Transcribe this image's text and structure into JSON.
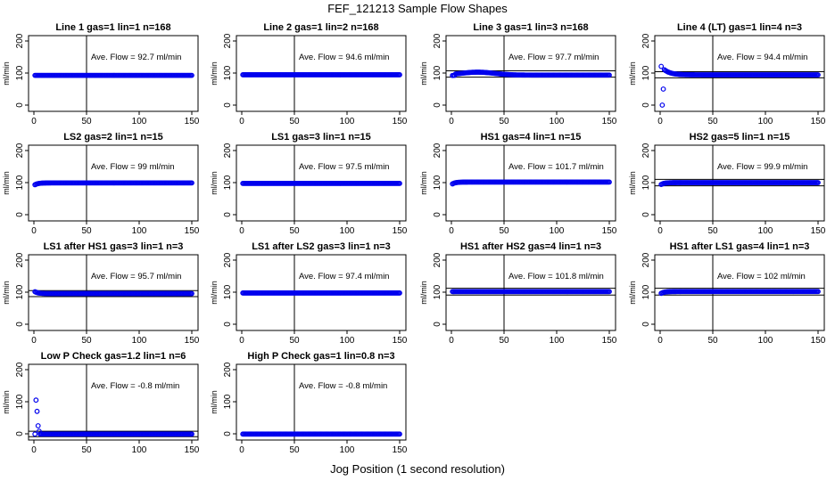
{
  "title": "FEF_121213  Sample Flow Shapes",
  "xlabel": "Jog Position (1 second resolution)",
  "ylabel": "ml/min",
  "colors": {
    "points": "#0000ee",
    "axes": "#000000"
  },
  "chart_data": [
    {
      "type": "scatter",
      "title": "Line 1 gas=1 lin=1 n=168",
      "annotation": "Ave. Flow =  92.7  ml/min",
      "xlim": [
        0,
        150
      ],
      "ylim": [
        0,
        200
      ],
      "xticks": [
        0,
        50,
        100,
        150
      ],
      "yticks": [
        0,
        100,
        200
      ],
      "vline": 50,
      "hlines": [],
      "shape": "flat",
      "level": 92.7,
      "xlabel": "",
      "ylabel": "ml/min",
      "series": []
    },
    {
      "type": "scatter",
      "title": "Line 2 gas=1 lin=2 n=168",
      "annotation": "Ave. Flow =  94.6  ml/min",
      "xlim": [
        0,
        150
      ],
      "ylim": [
        0,
        200
      ],
      "xticks": [
        0,
        50,
        100,
        150
      ],
      "yticks": [
        0,
        100,
        200
      ],
      "vline": 50,
      "hlines": [],
      "shape": "flat",
      "level": 94.6,
      "xlabel": "",
      "ylabel": "ml/min",
      "series": []
    },
    {
      "type": "scatter",
      "title": "Line 3 gas=1 lin=3 n=168",
      "annotation": "Ave. Flow =  97.7  ml/min",
      "xlim": [
        0,
        150
      ],
      "ylim": [
        0,
        200
      ],
      "xticks": [
        0,
        50,
        100,
        150
      ],
      "yticks": [
        0,
        100,
        200
      ],
      "vline": 50,
      "hlines": [
        87,
        107
      ],
      "shape": "hump",
      "level": 97.7,
      "xlabel": "",
      "ylabel": "ml/min",
      "series": []
    },
    {
      "type": "scatter",
      "title": "Line 4 (LT) gas=1 lin=4 n=3",
      "annotation": "Ave. Flow =  94.4  ml/min",
      "xlim": [
        0,
        150
      ],
      "ylim": [
        0,
        200
      ],
      "xticks": [
        0,
        50,
        100,
        150
      ],
      "yticks": [
        0,
        100,
        200
      ],
      "vline": 50,
      "hlines": [
        85,
        104
      ],
      "shape": "overshoot",
      "level": 94.4,
      "xlabel": "",
      "ylabel": "ml/min",
      "series": []
    },
    {
      "type": "scatter",
      "title": "LS2 gas=2 lin=1 n=15",
      "annotation": "Ave. Flow =  99  ml/min",
      "xlim": [
        0,
        150
      ],
      "ylim": [
        0,
        200
      ],
      "xticks": [
        0,
        50,
        100,
        150
      ],
      "yticks": [
        0,
        100,
        200
      ],
      "vline": 50,
      "hlines": [],
      "shape": "rise",
      "level": 99,
      "xlabel": "",
      "ylabel": "ml/min",
      "series": []
    },
    {
      "type": "scatter",
      "title": "LS1 gas=3 lin=1 n=15",
      "annotation": "Ave. Flow =  97.5  ml/min",
      "xlim": [
        0,
        150
      ],
      "ylim": [
        0,
        200
      ],
      "xticks": [
        0,
        50,
        100,
        150
      ],
      "yticks": [
        0,
        100,
        200
      ],
      "vline": 50,
      "hlines": [],
      "shape": "flat",
      "level": 97.5,
      "xlabel": "",
      "ylabel": "ml/min",
      "series": []
    },
    {
      "type": "scatter",
      "title": "HS1 gas=4 lin=1 n=15",
      "annotation": "Ave. Flow =  101.7  ml/min",
      "xlim": [
        0,
        150
      ],
      "ylim": [
        0,
        200
      ],
      "xticks": [
        0,
        50,
        100,
        150
      ],
      "yticks": [
        0,
        100,
        200
      ],
      "vline": 50,
      "hlines": [],
      "shape": "rise",
      "level": 101.7,
      "xlabel": "",
      "ylabel": "ml/min",
      "series": []
    },
    {
      "type": "scatter",
      "title": "HS2 gas=5 lin=1 n=15",
      "annotation": "Ave. Flow =  99.9  ml/min",
      "xlim": [
        0,
        150
      ],
      "ylim": [
        0,
        200
      ],
      "xticks": [
        0,
        50,
        100,
        150
      ],
      "yticks": [
        0,
        100,
        200
      ],
      "vline": 50,
      "hlines": [
        90,
        110
      ],
      "shape": "rise",
      "level": 99.9,
      "xlabel": "",
      "ylabel": "ml/min",
      "series": []
    },
    {
      "type": "scatter",
      "title": "LS1 after HS1 gas=3 lin=1 n=3",
      "annotation": "Ave. Flow =  95.7  ml/min",
      "xlim": [
        0,
        150
      ],
      "ylim": [
        0,
        200
      ],
      "xticks": [
        0,
        50,
        100,
        150
      ],
      "yticks": [
        0,
        100,
        200
      ],
      "vline": 50,
      "hlines": [
        86,
        105
      ],
      "shape": "decay",
      "level": 95.7,
      "xlabel": "",
      "ylabel": "ml/min",
      "series": []
    },
    {
      "type": "scatter",
      "title": "LS1 after LS2 gas=3 lin=1 n=3",
      "annotation": "Ave. Flow =  97.4  ml/min",
      "xlim": [
        0,
        150
      ],
      "ylim": [
        0,
        200
      ],
      "xticks": [
        0,
        50,
        100,
        150
      ],
      "yticks": [
        0,
        100,
        200
      ],
      "vline": 50,
      "hlines": [],
      "shape": "flat",
      "level": 97.4,
      "xlabel": "",
      "ylabel": "ml/min",
      "series": []
    },
    {
      "type": "scatter",
      "title": "HS1 after HS2 gas=4 lin=1 n=3",
      "annotation": "Ave. Flow =  101.8  ml/min",
      "xlim": [
        0,
        150
      ],
      "ylim": [
        0,
        200
      ],
      "xticks": [
        0,
        50,
        100,
        150
      ],
      "yticks": [
        0,
        100,
        200
      ],
      "vline": 50,
      "hlines": [
        91,
        112
      ],
      "shape": "flat",
      "level": 101.8,
      "xlabel": "",
      "ylabel": "ml/min",
      "series": []
    },
    {
      "type": "scatter",
      "title": "HS1 after LS1 gas=4 lin=1 n=3",
      "annotation": "Ave. Flow =  102  ml/min",
      "xlim": [
        0,
        150
      ],
      "ylim": [
        0,
        200
      ],
      "xticks": [
        0,
        50,
        100,
        150
      ],
      "yticks": [
        0,
        100,
        200
      ],
      "vline": 50,
      "hlines": [
        91,
        112
      ],
      "shape": "rise",
      "level": 102,
      "xlabel": "",
      "ylabel": "ml/min",
      "series": []
    },
    {
      "type": "scatter",
      "title": "Low P Check gas=1.2 lin=1 n=6",
      "annotation": "Ave. Flow =  -0.8  ml/min",
      "xlim": [
        0,
        150
      ],
      "ylim": [
        0,
        200
      ],
      "xticks": [
        0,
        50,
        100,
        150
      ],
      "yticks": [
        0,
        100,
        200
      ],
      "vline": 50,
      "hlines": [
        -9,
        8
      ],
      "shape": "drop",
      "level": -0.8,
      "xlabel": "",
      "ylabel": "ml/min",
      "series": []
    },
    {
      "type": "scatter",
      "title": "High P Check gas=1 lin=0.8 n=3",
      "annotation": "Ave. Flow =  -0.8  ml/min",
      "xlim": [
        0,
        150
      ],
      "ylim": [
        0,
        200
      ],
      "xticks": [
        0,
        50,
        100,
        150
      ],
      "yticks": [
        0,
        100,
        200
      ],
      "vline": 50,
      "hlines": [],
      "shape": "flat",
      "level": -0.8,
      "xlabel": "",
      "ylabel": "ml/min",
      "series": []
    }
  ]
}
